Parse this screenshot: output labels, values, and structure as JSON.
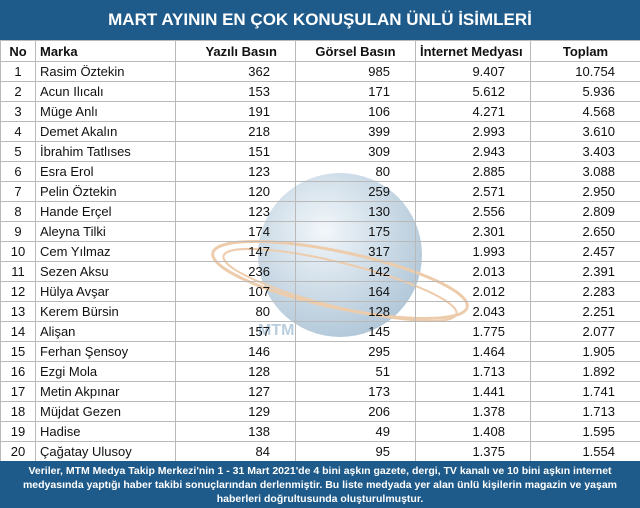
{
  "header": {
    "title": "MART AYININ EN ÇOK KONUŞULAN ÜNLÜ İSİMLERİ"
  },
  "table": {
    "columns": [
      "No",
      "Marka",
      "Yazılı Basın",
      "Görsel Basın",
      "İnternet Medyası",
      "Toplam"
    ],
    "rows": [
      [
        "1",
        "Rasim Öztekin",
        "362",
        "985",
        "9.407",
        "10.754"
      ],
      [
        "2",
        "Acun Ilıcalı",
        "153",
        "171",
        "5.612",
        "5.936"
      ],
      [
        "3",
        "Müge Anlı",
        "191",
        "106",
        "4.271",
        "4.568"
      ],
      [
        "4",
        "Demet Akalın",
        "218",
        "399",
        "2.993",
        "3.610"
      ],
      [
        "5",
        "İbrahim Tatlıses",
        "151",
        "309",
        "2.943",
        "3.403"
      ],
      [
        "6",
        "Esra Erol",
        "123",
        "80",
        "2.885",
        "3.088"
      ],
      [
        "7",
        "Pelin Öztekin",
        "120",
        "259",
        "2.571",
        "2.950"
      ],
      [
        "8",
        "Hande Erçel",
        "123",
        "130",
        "2.556",
        "2.809"
      ],
      [
        "9",
        "Aleyna Tilki",
        "174",
        "175",
        "2.301",
        "2.650"
      ],
      [
        "10",
        "Cem Yılmaz",
        "147",
        "317",
        "1.993",
        "2.457"
      ],
      [
        "11",
        "Sezen Aksu",
        "236",
        "142",
        "2.013",
        "2.391"
      ],
      [
        "12",
        "Hülya Avşar",
        "107",
        "164",
        "2.012",
        "2.283"
      ],
      [
        "13",
        "Kerem Bürsin",
        "80",
        "128",
        "2.043",
        "2.251"
      ],
      [
        "14",
        "Alişan",
        "157",
        "145",
        "1.775",
        "2.077"
      ],
      [
        "15",
        "Ferhan Şensoy",
        "146",
        "295",
        "1.464",
        "1.905"
      ],
      [
        "16",
        "Ezgi Mola",
        "128",
        "51",
        "1.713",
        "1.892"
      ],
      [
        "17",
        "Metin Akpınar",
        "127",
        "173",
        "1.441",
        "1.741"
      ],
      [
        "18",
        "Müjdat Gezen",
        "129",
        "206",
        "1.378",
        "1.713"
      ],
      [
        "19",
        "Hadise",
        "138",
        "49",
        "1.408",
        "1.595"
      ],
      [
        "20",
        "Çağatay Ulusoy",
        "84",
        "95",
        "1.375",
        "1.554"
      ]
    ]
  },
  "watermark": "MTM",
  "footer": {
    "note": "Veriler, MTM Medya Takip Merkezi'nin 1  - 31 Mart 2021'de 4 bini aşkın gazete, dergi, TV kanalı ve 10 bini aşkın internet medyasında yaptığı haber takibi sonuçlarından derlenmiştir.  Bu liste medyada yer alan ünlü kişilerin magazin ve yaşam haberleri doğrultusunda oluşturulmuştur."
  }
}
